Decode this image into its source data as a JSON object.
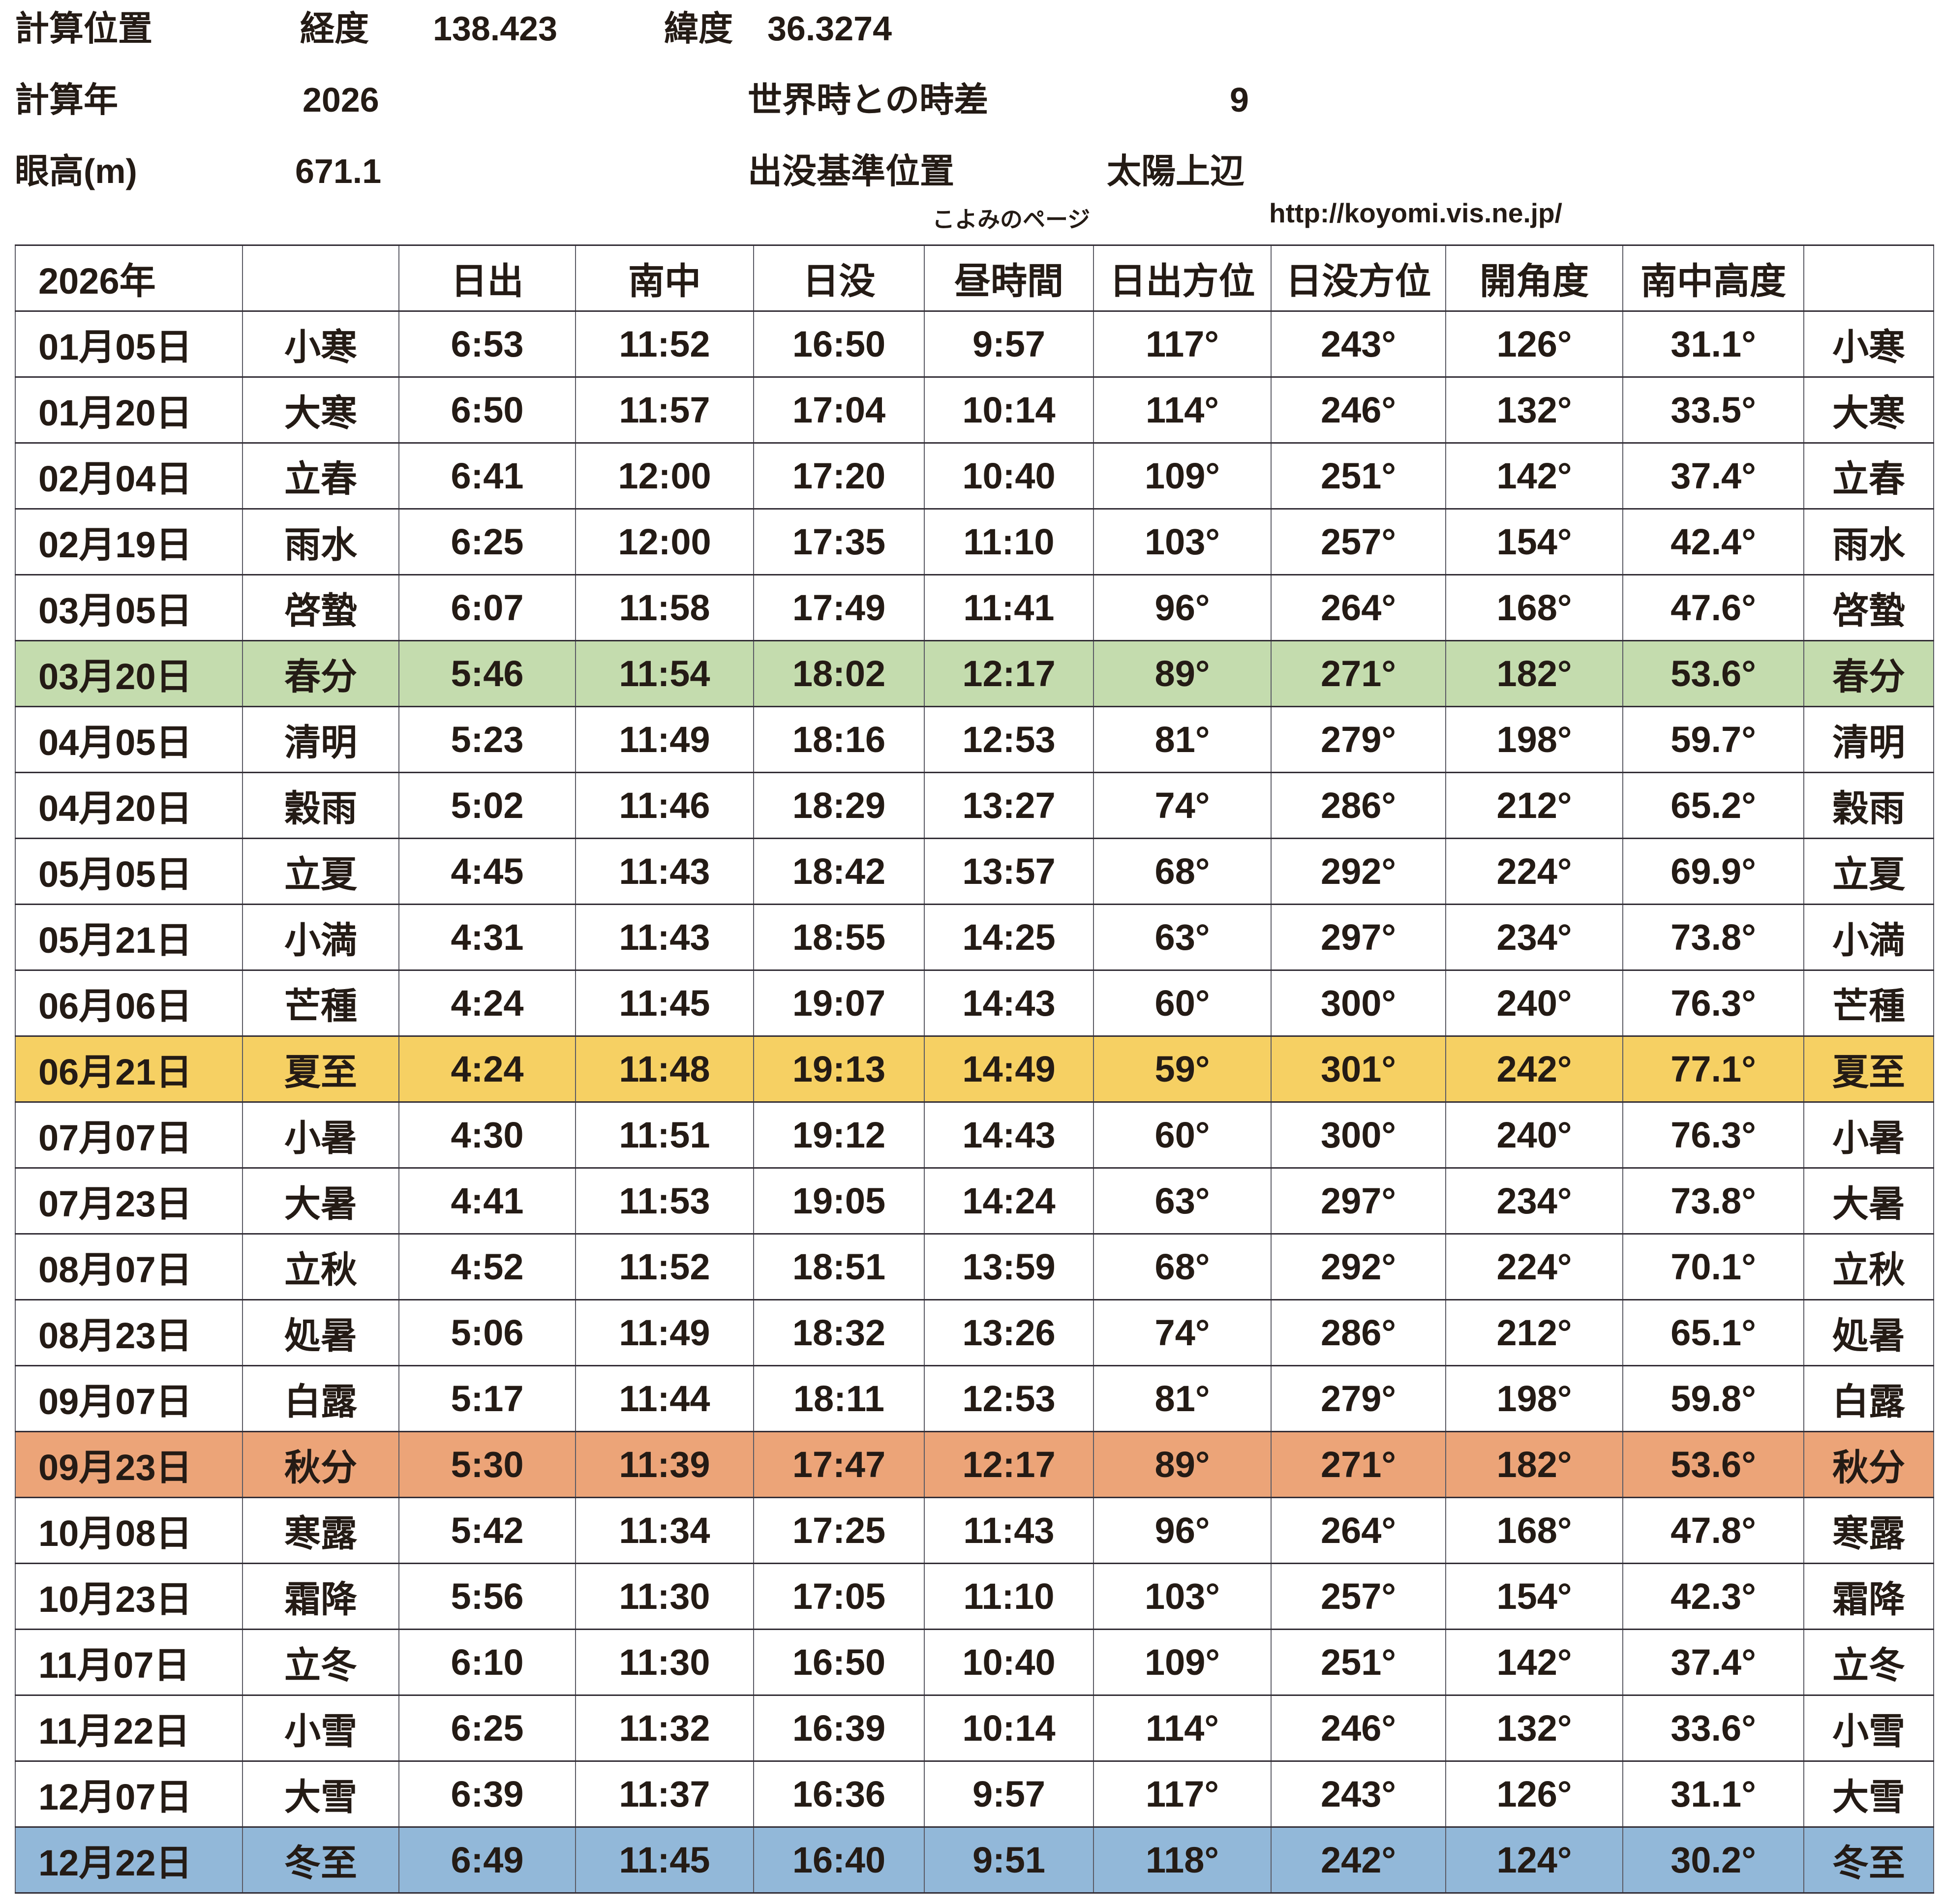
{
  "info": {
    "calc_position_label": "計算位置",
    "longitude_label": "経度",
    "longitude_value": "138.423",
    "latitude_label": "緯度",
    "latitude_value": "36.3274",
    "calc_year_label": "計算年",
    "calc_year_value": "2026",
    "utc_offset_label": "世界時との時差",
    "utc_offset_value": "9",
    "eye_height_label": "眼高(m)",
    "eye_height_value": "671.1",
    "rise_set_ref_label": "出没基準位置",
    "rise_set_ref_value": "太陽上辺",
    "site_name": "こよみのページ",
    "site_url": "http://koyomi.vis.ne.jp/"
  },
  "colors": {
    "green": "#c4dcae",
    "yellow": "#f6d063",
    "orange": "#eca478",
    "blue": "#92b8d9"
  },
  "table": {
    "columns": [
      "2026年",
      "",
      "日出",
      "南中",
      "日没",
      "昼時間",
      "日出方位",
      "日没方位",
      "開角度",
      "南中高度",
      ""
    ],
    "rows": [
      {
        "date": "01月05日",
        "term": "小寒",
        "rise": "6:53",
        "noon": "11:52",
        "set": "16:50",
        "day": "9:57",
        "rise_az": "117°",
        "set_az": "243°",
        "angle": "126°",
        "alt": "31.1°",
        "term_end": "小寒",
        "highlight": null
      },
      {
        "date": "01月20日",
        "term": "大寒",
        "rise": "6:50",
        "noon": "11:57",
        "set": "17:04",
        "day": "10:14",
        "rise_az": "114°",
        "set_az": "246°",
        "angle": "132°",
        "alt": "33.5°",
        "term_end": "大寒",
        "highlight": null
      },
      {
        "date": "02月04日",
        "term": "立春",
        "rise": "6:41",
        "noon": "12:00",
        "set": "17:20",
        "day": "10:40",
        "rise_az": "109°",
        "set_az": "251°",
        "angle": "142°",
        "alt": "37.4°",
        "term_end": "立春",
        "highlight": null
      },
      {
        "date": "02月19日",
        "term": "雨水",
        "rise": "6:25",
        "noon": "12:00",
        "set": "17:35",
        "day": "11:10",
        "rise_az": "103°",
        "set_az": "257°",
        "angle": "154°",
        "alt": "42.4°",
        "term_end": "雨水",
        "highlight": null
      },
      {
        "date": "03月05日",
        "term": "啓蟄",
        "rise": "6:07",
        "noon": "11:58",
        "set": "17:49",
        "day": "11:41",
        "rise_az": "96°",
        "set_az": "264°",
        "angle": "168°",
        "alt": "47.6°",
        "term_end": "啓蟄",
        "highlight": null
      },
      {
        "date": "03月20日",
        "term": "春分",
        "rise": "5:46",
        "noon": "11:54",
        "set": "18:02",
        "day": "12:17",
        "rise_az": "89°",
        "set_az": "271°",
        "angle": "182°",
        "alt": "53.6°",
        "term_end": "春分",
        "highlight": "green"
      },
      {
        "date": "04月05日",
        "term": "清明",
        "rise": "5:23",
        "noon": "11:49",
        "set": "18:16",
        "day": "12:53",
        "rise_az": "81°",
        "set_az": "279°",
        "angle": "198°",
        "alt": "59.7°",
        "term_end": "清明",
        "highlight": null
      },
      {
        "date": "04月20日",
        "term": "穀雨",
        "rise": "5:02",
        "noon": "11:46",
        "set": "18:29",
        "day": "13:27",
        "rise_az": "74°",
        "set_az": "286°",
        "angle": "212°",
        "alt": "65.2°",
        "term_end": "穀雨",
        "highlight": null
      },
      {
        "date": "05月05日",
        "term": "立夏",
        "rise": "4:45",
        "noon": "11:43",
        "set": "18:42",
        "day": "13:57",
        "rise_az": "68°",
        "set_az": "292°",
        "angle": "224°",
        "alt": "69.9°",
        "term_end": "立夏",
        "highlight": null
      },
      {
        "date": "05月21日",
        "term": "小満",
        "rise": "4:31",
        "noon": "11:43",
        "set": "18:55",
        "day": "14:25",
        "rise_az": "63°",
        "set_az": "297°",
        "angle": "234°",
        "alt": "73.8°",
        "term_end": "小満",
        "highlight": null
      },
      {
        "date": "06月06日",
        "term": "芒種",
        "rise": "4:24",
        "noon": "11:45",
        "set": "19:07",
        "day": "14:43",
        "rise_az": "60°",
        "set_az": "300°",
        "angle": "240°",
        "alt": "76.3°",
        "term_end": "芒種",
        "highlight": null
      },
      {
        "date": "06月21日",
        "term": "夏至",
        "rise": "4:24",
        "noon": "11:48",
        "set": "19:13",
        "day": "14:49",
        "rise_az": "59°",
        "set_az": "301°",
        "angle": "242°",
        "alt": "77.1°",
        "term_end": "夏至",
        "highlight": "yellow"
      },
      {
        "date": "07月07日",
        "term": "小暑",
        "rise": "4:30",
        "noon": "11:51",
        "set": "19:12",
        "day": "14:43",
        "rise_az": "60°",
        "set_az": "300°",
        "angle": "240°",
        "alt": "76.3°",
        "term_end": "小暑",
        "highlight": null
      },
      {
        "date": "07月23日",
        "term": "大暑",
        "rise": "4:41",
        "noon": "11:53",
        "set": "19:05",
        "day": "14:24",
        "rise_az": "63°",
        "set_az": "297°",
        "angle": "234°",
        "alt": "73.8°",
        "term_end": "大暑",
        "highlight": null
      },
      {
        "date": "08月07日",
        "term": "立秋",
        "rise": "4:52",
        "noon": "11:52",
        "set": "18:51",
        "day": "13:59",
        "rise_az": "68°",
        "set_az": "292°",
        "angle": "224°",
        "alt": "70.1°",
        "term_end": "立秋",
        "highlight": null
      },
      {
        "date": "08月23日",
        "term": "処暑",
        "rise": "5:06",
        "noon": "11:49",
        "set": "18:32",
        "day": "13:26",
        "rise_az": "74°",
        "set_az": "286°",
        "angle": "212°",
        "alt": "65.1°",
        "term_end": "処暑",
        "highlight": null
      },
      {
        "date": "09月07日",
        "term": "白露",
        "rise": "5:17",
        "noon": "11:44",
        "set": "18:11",
        "day": "12:53",
        "rise_az": "81°",
        "set_az": "279°",
        "angle": "198°",
        "alt": "59.8°",
        "term_end": "白露",
        "highlight": null
      },
      {
        "date": "09月23日",
        "term": "秋分",
        "rise": "5:30",
        "noon": "11:39",
        "set": "17:47",
        "day": "12:17",
        "rise_az": "89°",
        "set_az": "271°",
        "angle": "182°",
        "alt": "53.6°",
        "term_end": "秋分",
        "highlight": "orange"
      },
      {
        "date": "10月08日",
        "term": "寒露",
        "rise": "5:42",
        "noon": "11:34",
        "set": "17:25",
        "day": "11:43",
        "rise_az": "96°",
        "set_az": "264°",
        "angle": "168°",
        "alt": "47.8°",
        "term_end": "寒露",
        "highlight": null
      },
      {
        "date": "10月23日",
        "term": "霜降",
        "rise": "5:56",
        "noon": "11:30",
        "set": "17:05",
        "day": "11:10",
        "rise_az": "103°",
        "set_az": "257°",
        "angle": "154°",
        "alt": "42.3°",
        "term_end": "霜降",
        "highlight": null
      },
      {
        "date": "11月07日",
        "term": "立冬",
        "rise": "6:10",
        "noon": "11:30",
        "set": "16:50",
        "day": "10:40",
        "rise_az": "109°",
        "set_az": "251°",
        "angle": "142°",
        "alt": "37.4°",
        "term_end": "立冬",
        "highlight": null
      },
      {
        "date": "11月22日",
        "term": "小雪",
        "rise": "6:25",
        "noon": "11:32",
        "set": "16:39",
        "day": "10:14",
        "rise_az": "114°",
        "set_az": "246°",
        "angle": "132°",
        "alt": "33.6°",
        "term_end": "小雪",
        "highlight": null
      },
      {
        "date": "12月07日",
        "term": "大雪",
        "rise": "6:39",
        "noon": "11:37",
        "set": "16:36",
        "day": "9:57",
        "rise_az": "117°",
        "set_az": "243°",
        "angle": "126°",
        "alt": "31.1°",
        "term_end": "大雪",
        "highlight": null
      },
      {
        "date": "12月22日",
        "term": "冬至",
        "rise": "6:49",
        "noon": "11:45",
        "set": "16:40",
        "day": "9:51",
        "rise_az": "118°",
        "set_az": "242°",
        "angle": "124°",
        "alt": "30.2°",
        "term_end": "冬至",
        "highlight": "blue"
      }
    ]
  }
}
